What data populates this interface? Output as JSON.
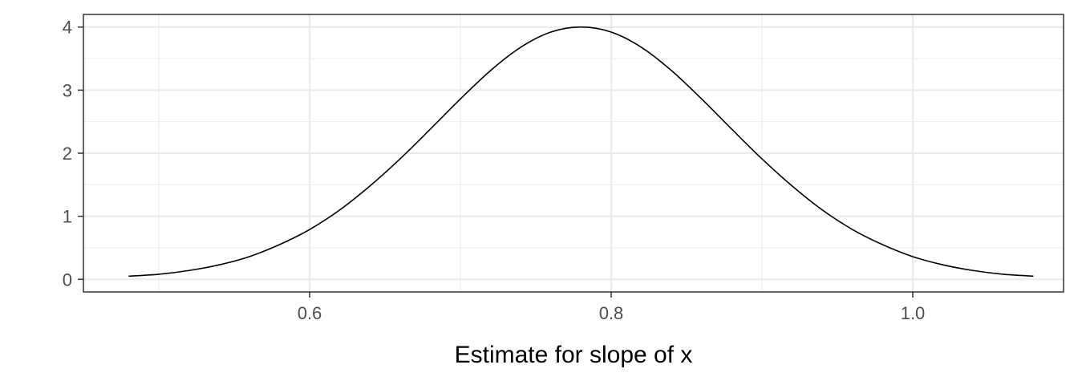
{
  "chart_data": {
    "type": "line",
    "title": "",
    "xlabel": "Estimate for slope of x",
    "ylabel": "",
    "xlim": [
      0.45,
      1.1
    ],
    "ylim": [
      -0.2,
      4.2
    ],
    "x_ticks": [
      0.6,
      0.8,
      1.0
    ],
    "x_tick_labels": [
      "0.6",
      "0.8",
      "1.0"
    ],
    "y_ticks": [
      0,
      1,
      2,
      3,
      4
    ],
    "y_tick_labels": [
      "0",
      "1",
      "2",
      "3",
      "4"
    ],
    "grid": true,
    "legend": "none",
    "colors": {
      "line": "#000000",
      "grid": "#ebebeb",
      "panel_border": "#333333",
      "background": "#ffffff"
    },
    "series": [
      {
        "x": [
          0.48,
          0.5,
          0.52,
          0.54,
          0.56,
          0.58,
          0.6,
          0.62,
          0.64,
          0.66,
          0.68,
          0.7,
          0.72,
          0.74,
          0.76,
          0.78,
          0.8,
          0.82,
          0.84,
          0.86,
          0.88,
          0.9,
          0.92,
          0.94,
          0.96,
          0.98,
          1.0,
          1.02,
          1.04,
          1.06,
          1.08
        ],
        "y": [
          0.05,
          0.08,
          0.14,
          0.23,
          0.36,
          0.55,
          0.79,
          1.1,
          1.48,
          1.91,
          2.38,
          2.86,
          3.31,
          3.68,
          3.92,
          4.0,
          3.92,
          3.68,
          3.31,
          2.86,
          2.38,
          1.91,
          1.48,
          1.1,
          0.79,
          0.55,
          0.36,
          0.23,
          0.14,
          0.08,
          0.05
        ]
      }
    ]
  }
}
